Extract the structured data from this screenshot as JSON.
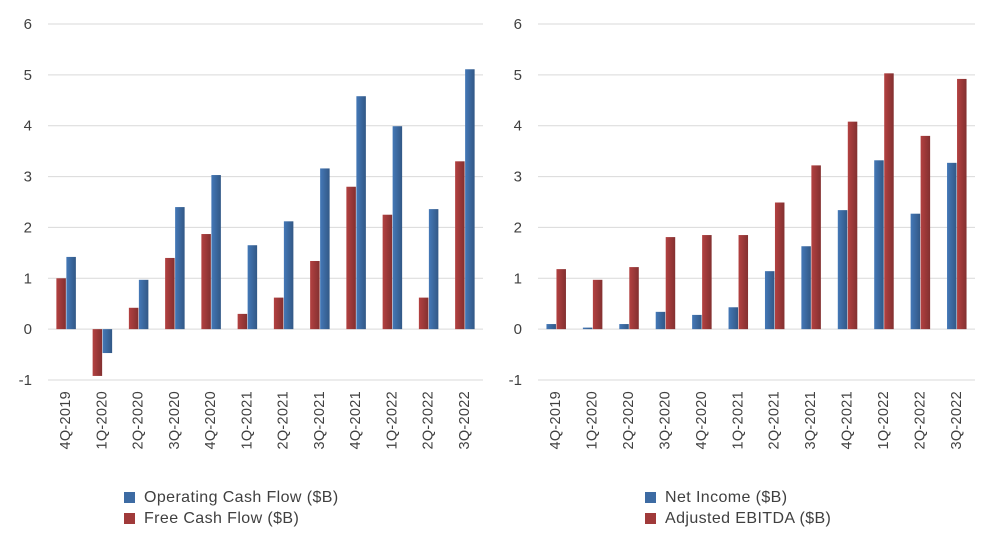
{
  "chart_data": [
    {
      "type": "bar",
      "categories": [
        "4Q-2019",
        "1Q-2020",
        "2Q-2020",
        "3Q-2020",
        "4Q-2020",
        "1Q-2021",
        "2Q-2021",
        "3Q-2021",
        "4Q-2021",
        "1Q-2022",
        "2Q-2022",
        "3Q-2022"
      ],
      "series": [
        {
          "name": "Free Cash Flow ($B)",
          "color": "#a03a3a",
          "values": [
            1.0,
            -0.92,
            0.42,
            1.4,
            1.87,
            0.3,
            0.62,
            1.34,
            2.8,
            2.25,
            0.62,
            3.3
          ]
        },
        {
          "name": "Operating Cash Flow ($B)",
          "color": "#3d6ba3",
          "values": [
            1.42,
            -0.47,
            0.97,
            2.4,
            3.03,
            1.65,
            2.12,
            3.16,
            4.58,
            3.99,
            2.36,
            5.11
          ]
        }
      ],
      "legend_order": [
        "Operating Cash Flow ($B)",
        "Free Cash Flow ($B)"
      ],
      "ylim": [
        -1,
        6
      ],
      "yticks": [
        "-1",
        "0",
        "1",
        "2",
        "3",
        "4",
        "5",
        "6"
      ],
      "grid": true,
      "legend_position": "bottom-center"
    },
    {
      "type": "bar",
      "categories": [
        "4Q-2019",
        "1Q-2020",
        "2Q-2020",
        "3Q-2020",
        "4Q-2020",
        "1Q-2021",
        "2Q-2021",
        "3Q-2021",
        "4Q-2021",
        "1Q-2022",
        "2Q-2022",
        "3Q-2022"
      ],
      "series": [
        {
          "name": "Net Income ($B)",
          "color": "#3d6ba3",
          "values": [
            0.1,
            0.03,
            0.1,
            0.34,
            0.28,
            0.43,
            1.14,
            1.63,
            2.34,
            3.32,
            2.27,
            3.27
          ]
        },
        {
          "name": "Adjusted EBITDA ($B)",
          "color": "#a03a3a",
          "values": [
            1.18,
            0.97,
            1.22,
            1.81,
            1.85,
            1.85,
            2.49,
            3.22,
            4.08,
            5.03,
            3.8,
            4.92
          ]
        }
      ],
      "legend_order": [
        "Net Income ($B)",
        "Adjusted EBITDA ($B)"
      ],
      "ylim": [
        -1,
        6
      ],
      "yticks": [
        "-1",
        "0",
        "1",
        "2",
        "3",
        "4",
        "5",
        "6"
      ],
      "grid": true,
      "legend_position": "bottom-center"
    }
  ],
  "legends": [
    {
      "items": [
        {
          "label": "Operating Cash Flow ($B)",
          "color": "#3d6ba3"
        },
        {
          "label": "Free Cash Flow ($B)",
          "color": "#a03a3a"
        }
      ]
    },
    {
      "items": [
        {
          "label": "Net Income ($B)",
          "color": "#3d6ba3"
        },
        {
          "label": "Adjusted EBITDA ($B)",
          "color": "#a03a3a"
        }
      ]
    }
  ]
}
